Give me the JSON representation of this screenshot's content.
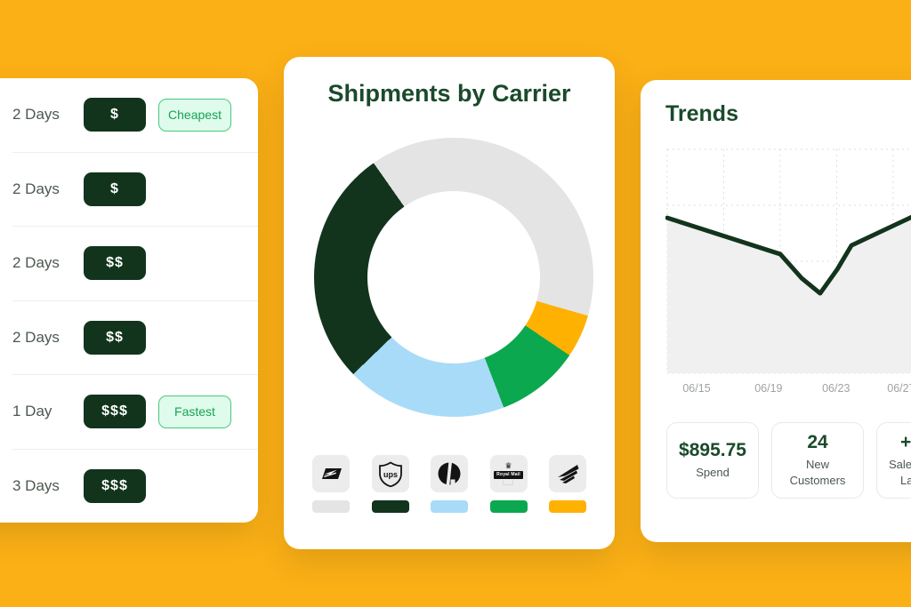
{
  "colors": {
    "background": "#FBB016",
    "card": "#FFFFFF",
    "ink_green": "#12341C",
    "title_green": "#1A4A2B",
    "muted_green": "#4B584F",
    "mint_bg": "#DFFBEB",
    "mint_border": "#46C97E",
    "mint_text": "#17A357",
    "divider": "#EEEEEE",
    "tile_bg": "#ECECEC",
    "chart_fill": "#F0F0F1",
    "grid": "#DDDDDD",
    "tick_text": "#9EA4A0",
    "stat_border": "#E9E9E9",
    "logo_ink": "#131313"
  },
  "rates_panel": {
    "rows": [
      {
        "duration": "2 Days",
        "price": "$",
        "tag": "Cheapest"
      },
      {
        "duration": "2 Days",
        "price": "$"
      },
      {
        "duration": "2 Days",
        "price": "$$"
      },
      {
        "duration": "2 Days",
        "price": "$$"
      },
      {
        "duration": "1 Day",
        "price": "$$$",
        "tag": "Fastest"
      },
      {
        "duration": "3 Days",
        "price": "$$$"
      }
    ]
  },
  "carrier_panel": {
    "title": "Shipments by Carrier",
    "carriers": [
      {
        "name": "USPS",
        "color": "#E4E4E5"
      },
      {
        "name": "UPS",
        "color": "#12341C",
        "logo_text": "ups"
      },
      {
        "name": "Purolator",
        "color": "#A8DBF7"
      },
      {
        "name": "Royal Mail",
        "color": "#0BA84F",
        "logo_text": "Royal Mail"
      },
      {
        "name": "La Poste",
        "color": "#FFB102"
      }
    ]
  },
  "trends_panel": {
    "title": "Trends",
    "stats": [
      {
        "value": "$895.75",
        "lines": [
          "Spend"
        ]
      },
      {
        "value": "24",
        "lines": [
          "New",
          "Customers"
        ]
      },
      {
        "value": "+",
        "lines": [
          "Sale",
          "La"
        ],
        "clipped": true
      }
    ]
  },
  "chart_data": [
    {
      "type": "pie",
      "donut": true,
      "title": "Shipments by Carrier",
      "start_angle_deg": -35,
      "legend_position": "bottom (carrier logos with color swatches)",
      "segments": [
        {
          "label": "USPS",
          "pct": 39.2,
          "sweep_deg": 141,
          "color": "#E4E4E5"
        },
        {
          "label": "La Poste",
          "pct": 5.0,
          "sweep_deg": 18,
          "color": "#FFB102"
        },
        {
          "label": "Royal Mail",
          "pct": 9.7,
          "sweep_deg": 35,
          "color": "#0BA84F"
        },
        {
          "label": "Purolator",
          "pct": 18.6,
          "sweep_deg": 67,
          "color": "#A8DBF7"
        },
        {
          "label": "UPS",
          "pct": 27.5,
          "sweep_deg": 99,
          "color": "#12341C"
        }
      ]
    },
    {
      "type": "area",
      "title": "Trends",
      "grid": "dashed",
      "y_axis": "unlabeled",
      "x_tick_labels": [
        "06/15",
        "06/19",
        "06/23",
        "06/27"
      ],
      "tick_x": [
        0.12,
        0.414,
        0.69,
        0.956
      ],
      "points": [
        {
          "x": 0.0,
          "v": 0.694
        },
        {
          "x": 0.462,
          "v": 0.532
        },
        {
          "x": 0.549,
          "v": 0.425
        },
        {
          "x": 0.625,
          "v": 0.357
        },
        {
          "x": 0.695,
          "v": 0.464
        },
        {
          "x": 0.753,
          "v": 0.571
        },
        {
          "x": 1.0,
          "v": 0.698
        }
      ]
    }
  ]
}
